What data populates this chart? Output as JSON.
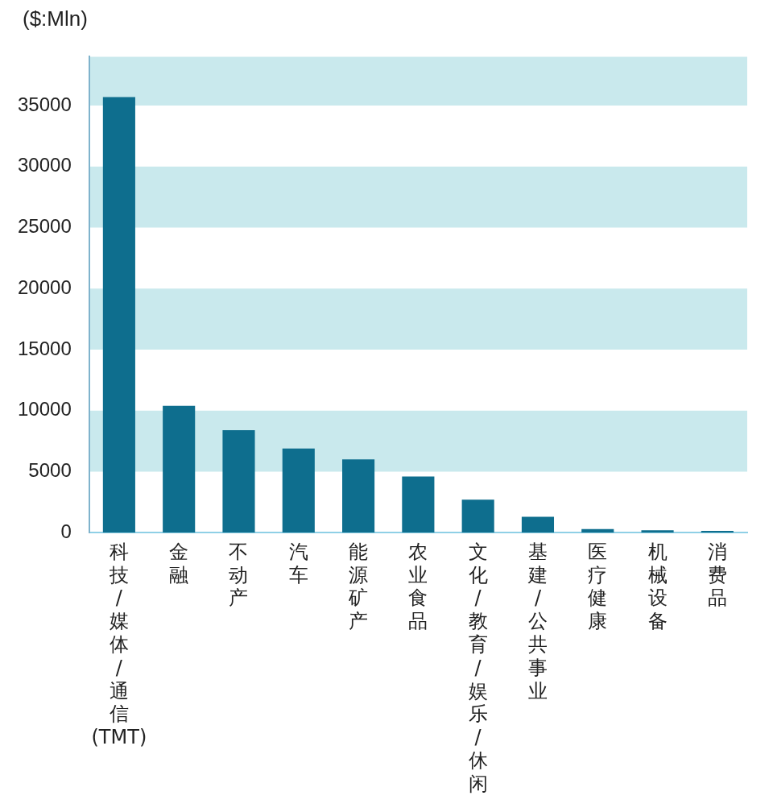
{
  "chart_data": {
    "type": "bar",
    "ylabel": "($:Mln)",
    "categories": [
      "科技/媒体/通信(TMT)",
      "金融",
      "不动产",
      "汽车",
      "能源矿产",
      "农业食品",
      "文化/教育/娱乐/休闲",
      "基建/公共事业",
      "医疗健康",
      "机械设备",
      "消费品"
    ],
    "values": [
      35700,
      10400,
      8400,
      6900,
      6000,
      4600,
      2700,
      1300,
      300,
      200,
      150
    ],
    "color": "#0e6e8e",
    "ylim": [
      0,
      39000
    ],
    "yticks": [
      0,
      5000,
      10000,
      15000,
      20000,
      25000,
      30000,
      35000
    ],
    "bands": [
      {
        "axis": "y",
        "from": 5000,
        "to": 10000,
        "color": "#c9e9ed"
      },
      {
        "axis": "y",
        "from": 15000,
        "to": 20000,
        "color": "#c9e9ed"
      },
      {
        "axis": "y",
        "from": 25000,
        "to": 30000,
        "color": "#c9e9ed"
      },
      {
        "axis": "y",
        "from": 35000,
        "to": 39000,
        "color": "#c9e9ed"
      }
    ]
  }
}
